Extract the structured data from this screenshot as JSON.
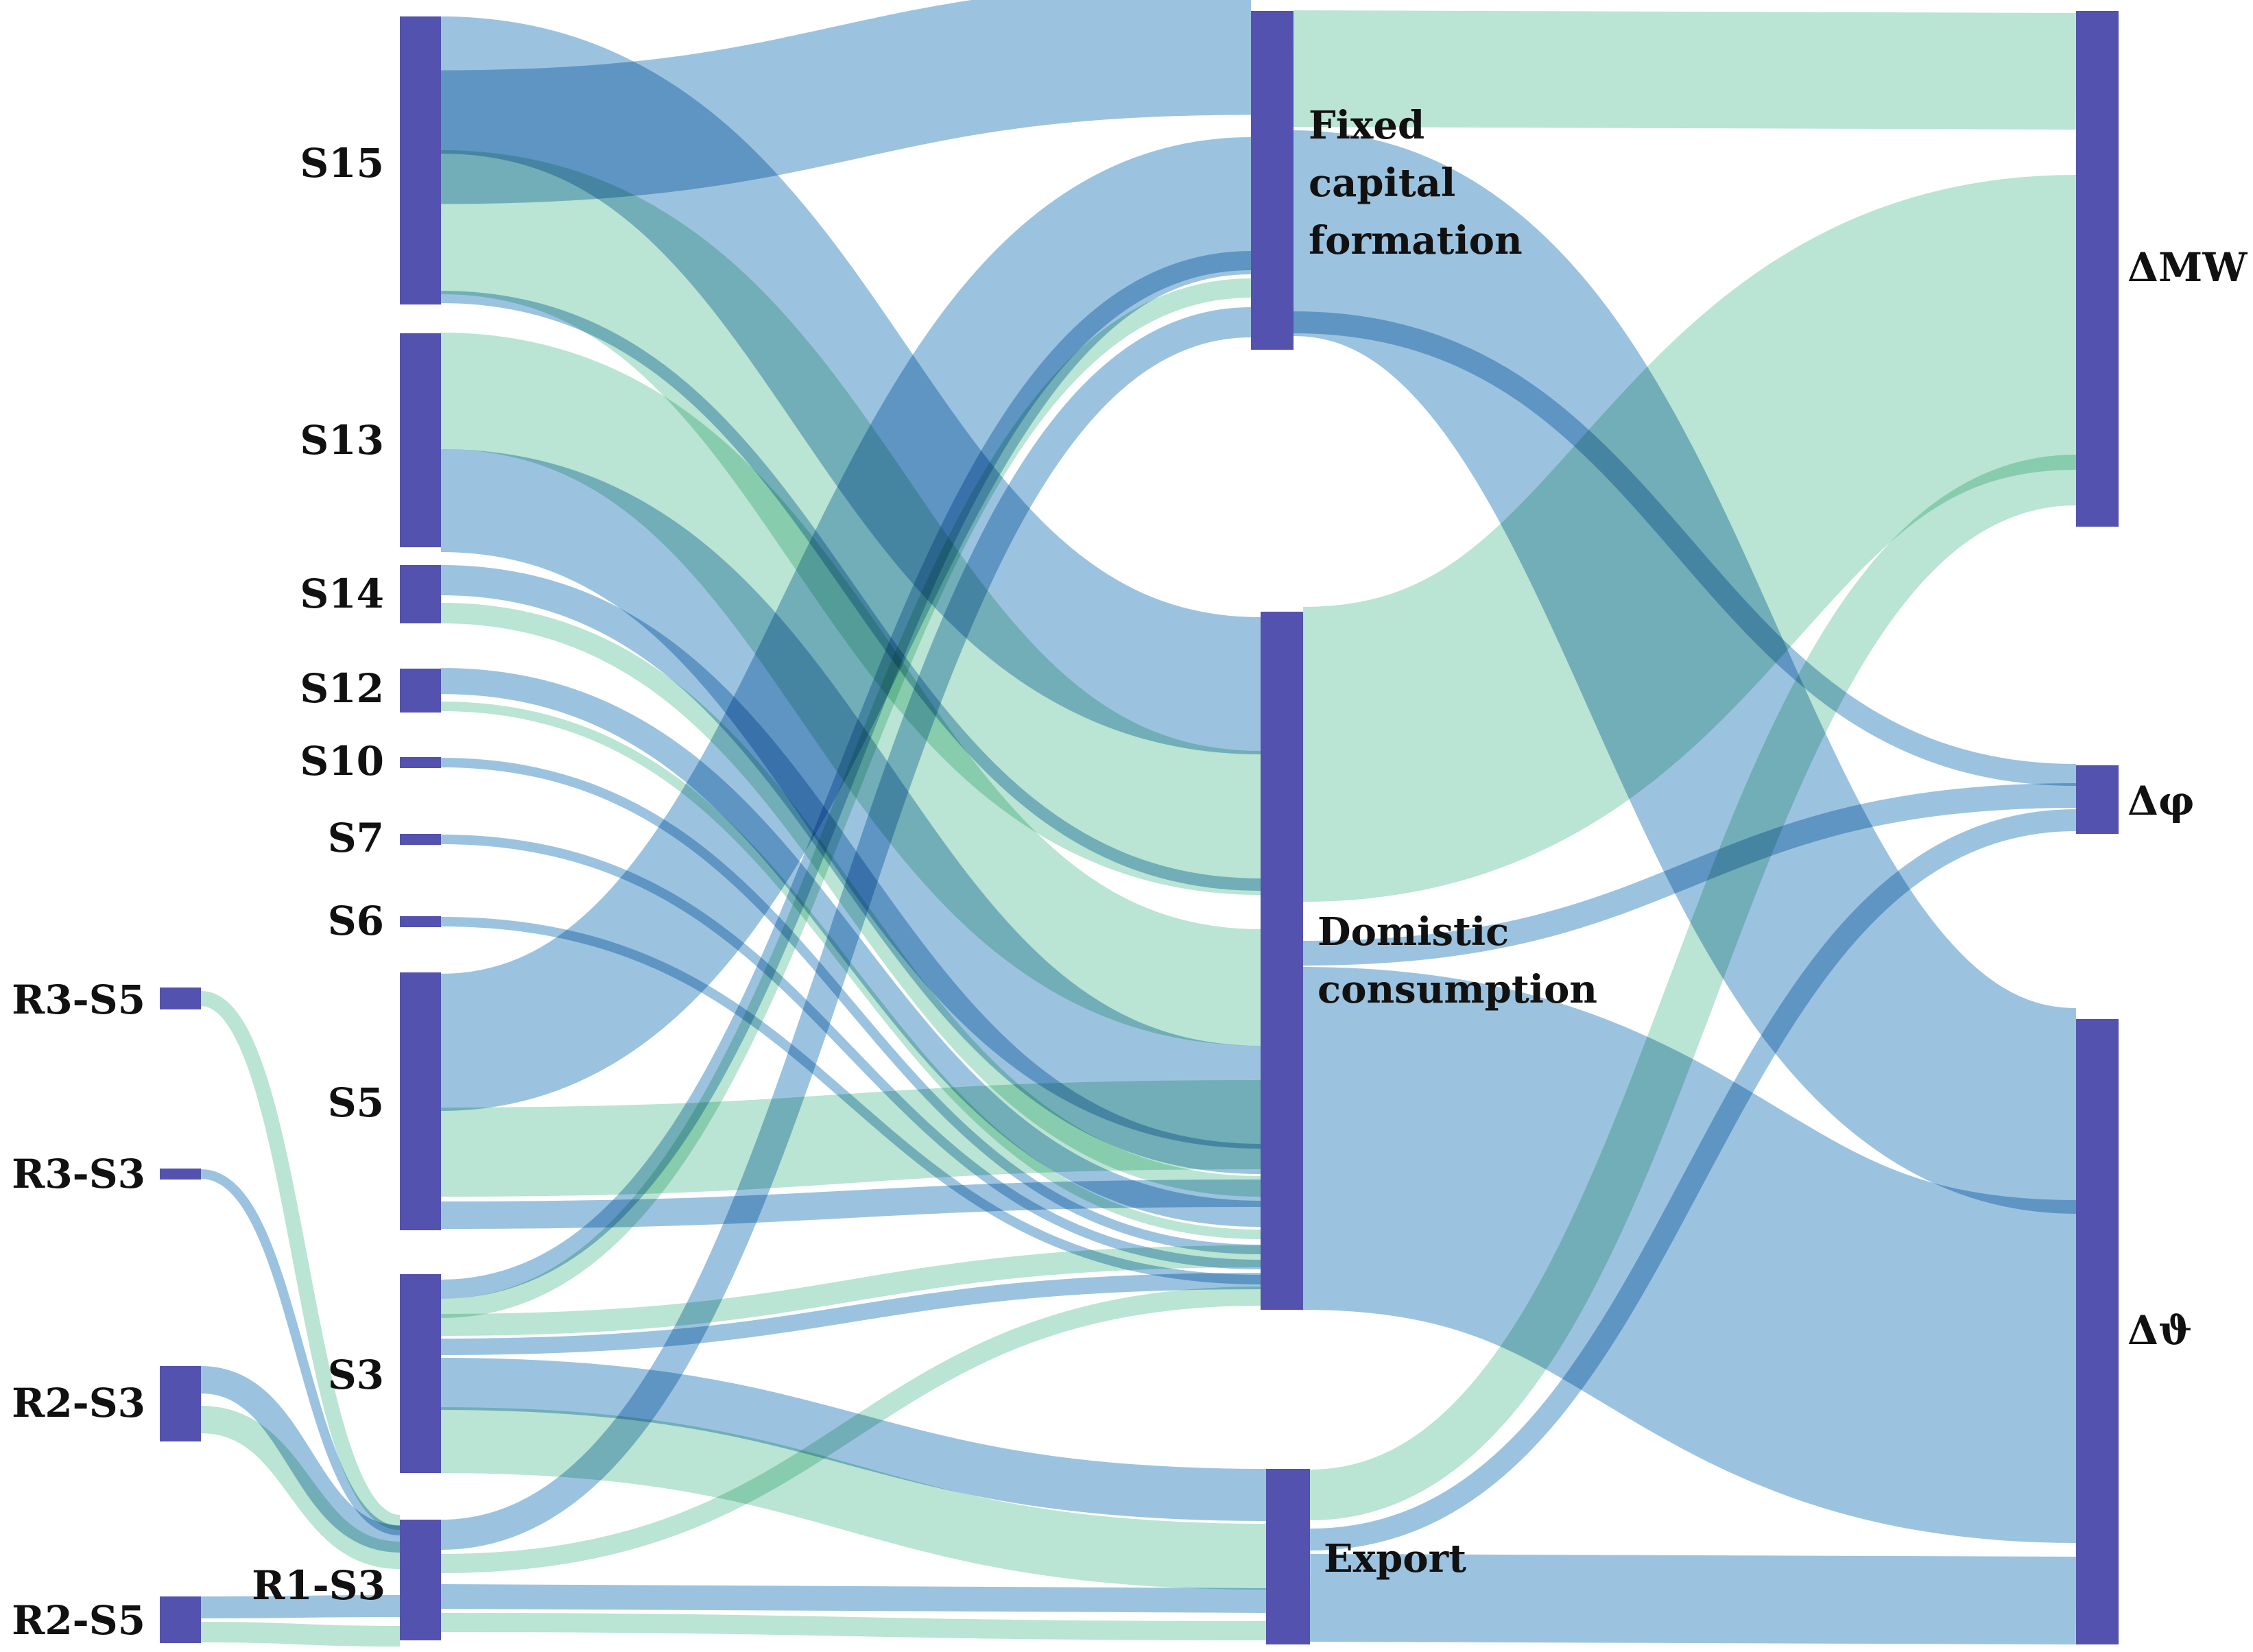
{
  "colors": {
    "node": "#5352ae",
    "blue_flow": "#7fb2d6",
    "green_flow": "#a6dcc7",
    "link_opacity": 0.78
  },
  "nodes": [
    {
      "id": "S15",
      "label": "S15"
    },
    {
      "id": "S13",
      "label": "S13"
    },
    {
      "id": "S14",
      "label": "S14"
    },
    {
      "id": "S12",
      "label": "S12"
    },
    {
      "id": "S10",
      "label": "S10"
    },
    {
      "id": "S7",
      "label": "S7"
    },
    {
      "id": "S6",
      "label": "S6"
    },
    {
      "id": "S5",
      "label": "S5"
    },
    {
      "id": "S3",
      "label": "S3"
    },
    {
      "id": "R1-S3",
      "label": "R1-S3"
    },
    {
      "id": "R3-S5",
      "label": "R3-S5"
    },
    {
      "id": "R3-S3",
      "label": "R3-S3"
    },
    {
      "id": "R2-S3",
      "label": "R2-S3"
    },
    {
      "id": "R2-S5",
      "label": "R2-S5"
    },
    {
      "id": "FCF",
      "label_lines": [
        "Fixed",
        "capital",
        "formation"
      ]
    },
    {
      "id": "DC",
      "label_lines": [
        "Domistic",
        "consumption"
      ]
    },
    {
      "id": "EX",
      "label": "Export"
    },
    {
      "id": "MW",
      "label": "ΔMW"
    },
    {
      "id": "PHI",
      "label": "Δφ"
    },
    {
      "id": "THETA",
      "label": "Δϑ"
    }
  ]
}
